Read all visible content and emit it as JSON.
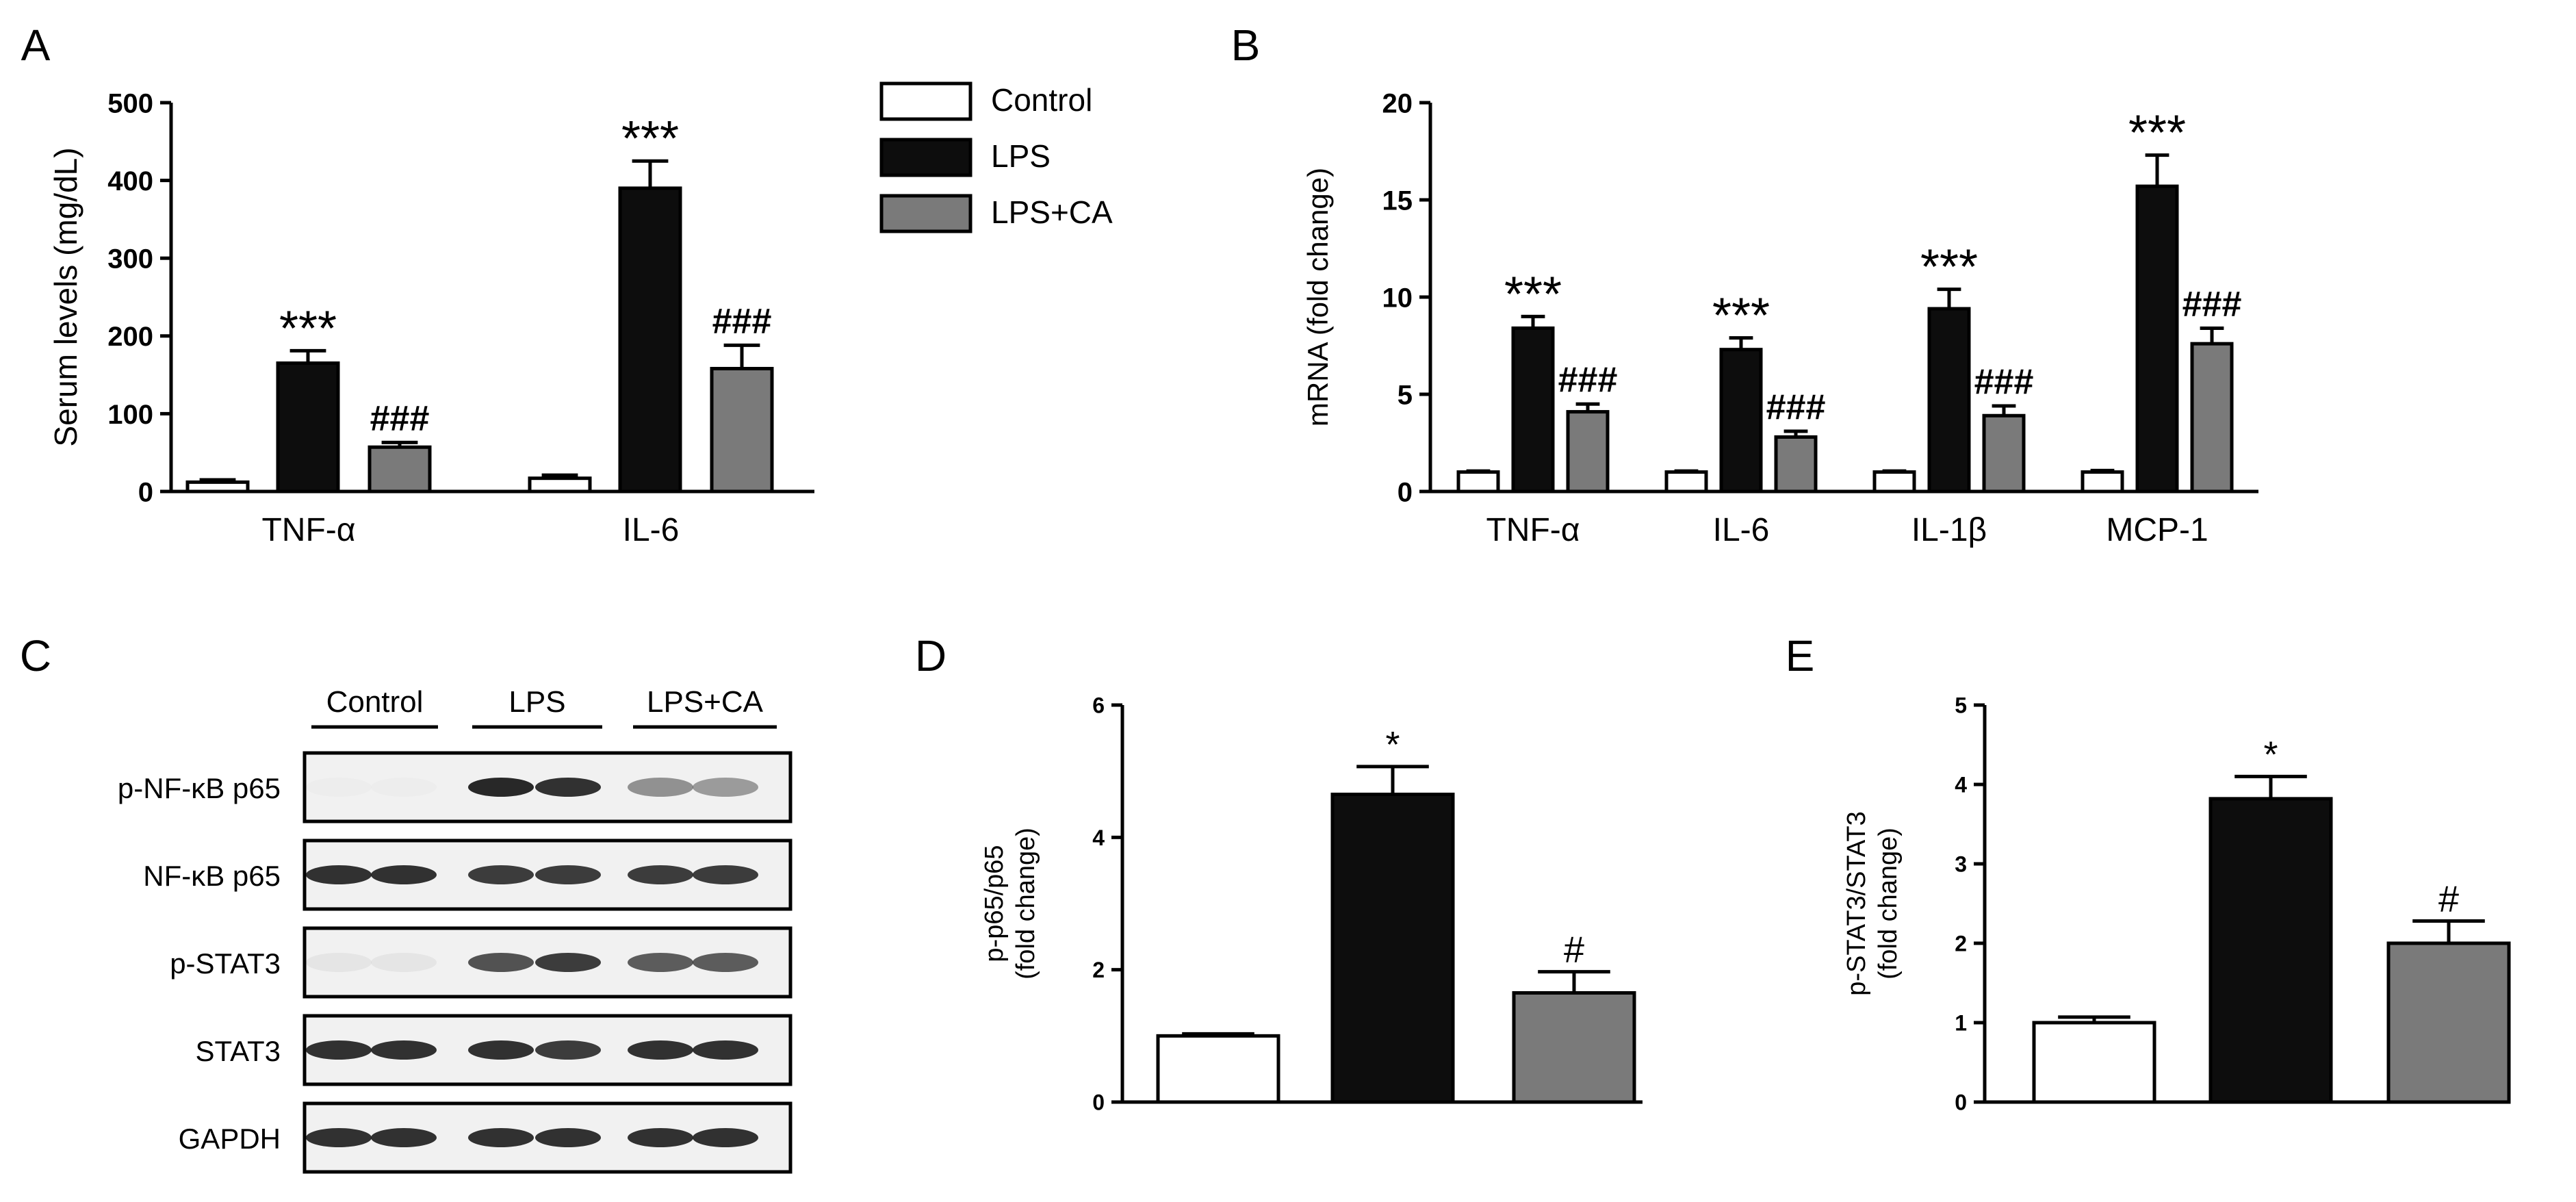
{
  "colors": {
    "control": "#ffffff",
    "lps": "#0d0d0d",
    "lps_ca": "#7a7a7a",
    "axis": "#000000",
    "blot_bg": "#f1f1f1",
    "blot_band": "#1c1c1c"
  },
  "panel_letters": [
    "A",
    "B",
    "C",
    "D",
    "E"
  ],
  "legend": {
    "entries": [
      {
        "label": "Control",
        "color_key": "control"
      },
      {
        "label": "LPS",
        "color_key": "lps"
      },
      {
        "label": "LPS+CA",
        "color_key": "lps_ca"
      }
    ]
  },
  "chart_data": [
    {
      "panel": "A",
      "type": "bar",
      "ylabel": "Serum levels (mg/dL)",
      "ylim": [
        0,
        500
      ],
      "yticks": [
        0,
        100,
        200,
        300,
        400,
        500
      ],
      "categories": [
        "TNF-α",
        "IL-6"
      ],
      "series": [
        {
          "name": "Control",
          "values": [
            12,
            17
          ],
          "errors": [
            3,
            4
          ]
        },
        {
          "name": "LPS",
          "values": [
            165,
            390
          ],
          "errors": [
            16,
            35
          ]
        },
        {
          "name": "LPS+CA",
          "values": [
            57,
            158
          ],
          "errors": [
            6,
            30
          ]
        }
      ],
      "annotations": [
        {
          "category": 0,
          "series": 1,
          "text": "***"
        },
        {
          "category": 0,
          "series": 2,
          "text": "###"
        },
        {
          "category": 1,
          "series": 1,
          "text": "***"
        },
        {
          "category": 1,
          "series": 2,
          "text": "###"
        }
      ]
    },
    {
      "panel": "B",
      "type": "bar",
      "ylabel": "mRNA (fold change)",
      "ylim": [
        0,
        20
      ],
      "yticks": [
        0,
        5,
        10,
        15,
        20
      ],
      "categories": [
        "TNF-α",
        "IL-6",
        "IL-1β",
        "MCP-1"
      ],
      "series": [
        {
          "name": "Control",
          "values": [
            1.0,
            1.0,
            1.0,
            1.0
          ],
          "errors": [
            0.05,
            0.05,
            0.05,
            0.08
          ]
        },
        {
          "name": "LPS",
          "values": [
            8.4,
            7.3,
            9.4,
            15.7
          ],
          "errors": [
            0.6,
            0.6,
            1.0,
            1.6
          ]
        },
        {
          "name": "LPS+CA",
          "values": [
            4.1,
            2.8,
            3.9,
            7.6
          ],
          "errors": [
            0.4,
            0.3,
            0.5,
            0.8
          ]
        }
      ],
      "annotations": [
        {
          "category": 0,
          "series": 1,
          "text": "***"
        },
        {
          "category": 0,
          "series": 2,
          "text": "###"
        },
        {
          "category": 1,
          "series": 1,
          "text": "***"
        },
        {
          "category": 1,
          "series": 2,
          "text": "###"
        },
        {
          "category": 2,
          "series": 1,
          "text": "***"
        },
        {
          "category": 2,
          "series": 2,
          "text": "###"
        },
        {
          "category": 3,
          "series": 1,
          "text": "***"
        },
        {
          "category": 3,
          "series": 2,
          "text": "###"
        }
      ]
    },
    {
      "panel": "D",
      "type": "bar",
      "ylabel_lines": [
        "p-p65/p65",
        "(fold change)"
      ],
      "ylim": [
        0,
        6
      ],
      "yticks": [
        0,
        2,
        4,
        6
      ],
      "categories": [
        "Control",
        "LPS",
        "LPS+CA"
      ],
      "values": [
        1.0,
        4.65,
        1.65
      ],
      "errors": [
        0.03,
        0.42,
        0.32
      ],
      "annotations": [
        "",
        "*",
        "#"
      ]
    },
    {
      "panel": "E",
      "type": "bar",
      "ylabel_lines": [
        "p-STAT3/STAT3",
        "(fold change)"
      ],
      "ylim": [
        0,
        5
      ],
      "yticks": [
        0,
        1,
        2,
        3,
        4,
        5
      ],
      "categories": [
        "Control",
        "LPS",
        "LPS+CA"
      ],
      "values": [
        1.0,
        3.82,
        2.0
      ],
      "errors": [
        0.07,
        0.28,
        0.28
      ],
      "annotations": [
        "",
        "*",
        "#"
      ]
    }
  ],
  "blot": {
    "group_labels": [
      "Control",
      "LPS",
      "LPS+CA"
    ],
    "rows": [
      {
        "label": "p-NF-κB p65",
        "intensity": [
          0.02,
          0.02,
          0.95,
          0.9,
          0.45,
          0.4
        ]
      },
      {
        "label": "NF-κB p65",
        "intensity": [
          0.9,
          0.9,
          0.85,
          0.85,
          0.85,
          0.85
        ]
      },
      {
        "label": "p-STAT3",
        "intensity": [
          0.05,
          0.05,
          0.75,
          0.85,
          0.7,
          0.7
        ]
      },
      {
        "label": "STAT3",
        "intensity": [
          0.9,
          0.9,
          0.9,
          0.85,
          0.9,
          0.9
        ]
      },
      {
        "label": "GAPDH",
        "intensity": [
          0.9,
          0.9,
          0.9,
          0.9,
          0.9,
          0.9
        ]
      }
    ]
  }
}
